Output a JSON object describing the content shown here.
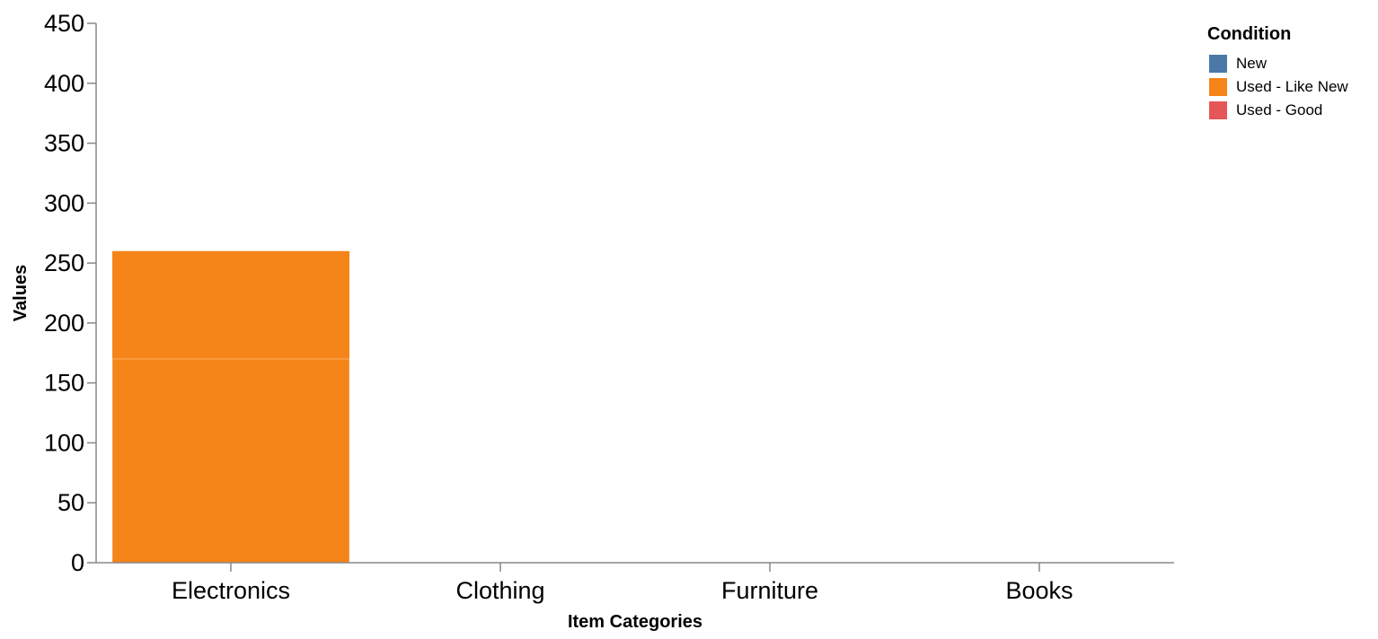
{
  "chart_data": {
    "type": "bar",
    "stacked": true,
    "xlabel": "Item Categories",
    "ylabel": "Values",
    "categories": [
      "Electronics",
      "Clothing",
      "Furniture",
      "Books"
    ],
    "ylim": [
      0,
      450
    ],
    "yticks": [
      0,
      50,
      100,
      150,
      200,
      250,
      300,
      350,
      400,
      450
    ],
    "grid": false,
    "legend": {
      "title": "Condition",
      "position": "top-right"
    },
    "series": [
      {
        "name": "New",
        "color": "#4c78a8",
        "values": [
          0,
          0,
          0,
          0
        ]
      },
      {
        "name": "Used - Like New",
        "color": "#f58518",
        "values": [
          170,
          0,
          0,
          0
        ]
      },
      {
        "name": "Used - Good",
        "color": "#e45756",
        "values": [
          0,
          0,
          0,
          0
        ]
      }
    ],
    "overlay_bars": [
      {
        "category": "Electronics",
        "series": "Used - Like New",
        "value": 260
      }
    ]
  }
}
